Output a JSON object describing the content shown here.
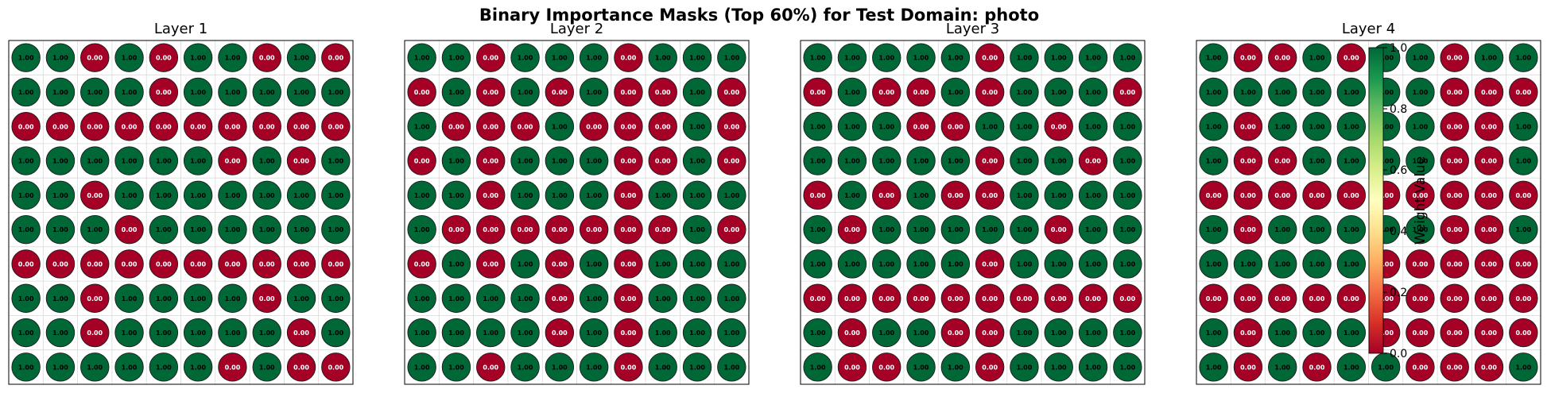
{
  "figure": {
    "title": "Binary Importance Masks (Top 60%) for Test Domain: photo"
  },
  "colors": {
    "on": "#006837",
    "off": "#a50026",
    "on_text": "#000000",
    "off_text": "#ffffff",
    "grid": "#d9d9d9",
    "cmap": [
      "#a50026",
      "#d73027",
      "#f46d43",
      "#fdae61",
      "#fee08b",
      "#ffffbf",
      "#d9ef8b",
      "#a6d96a",
      "#66bd63",
      "#1a9850",
      "#006837"
    ]
  },
  "colorbar": {
    "label": "Weight Value",
    "range": [
      0.0,
      1.0
    ],
    "ticks": [
      {
        "value": 0.0,
        "label": "0.0"
      },
      {
        "value": 0.2,
        "label": "0.2"
      },
      {
        "value": 0.4,
        "label": "0.4"
      },
      {
        "value": 0.6,
        "label": "0.6"
      },
      {
        "value": 0.8,
        "label": "0.8"
      },
      {
        "value": 1.0,
        "label": "1.0"
      }
    ]
  },
  "chart_data": [
    {
      "type": "heatmap",
      "title": "Layer 1",
      "values": [
        [
          1,
          1,
          0,
          1,
          0,
          1,
          1,
          0,
          1,
          0
        ],
        [
          1,
          1,
          1,
          1,
          0,
          1,
          1,
          1,
          1,
          1
        ],
        [
          0,
          0,
          0,
          0,
          0,
          0,
          0,
          0,
          0,
          0
        ],
        [
          1,
          1,
          1,
          1,
          1,
          1,
          0,
          1,
          0,
          1
        ],
        [
          1,
          1,
          0,
          1,
          1,
          1,
          1,
          1,
          1,
          1
        ],
        [
          1,
          1,
          1,
          0,
          1,
          1,
          1,
          1,
          1,
          1
        ],
        [
          0,
          0,
          0,
          0,
          0,
          0,
          0,
          0,
          0,
          0
        ],
        [
          1,
          1,
          0,
          1,
          1,
          1,
          1,
          0,
          1,
          1
        ],
        [
          1,
          1,
          0,
          1,
          1,
          1,
          1,
          1,
          0,
          1
        ],
        [
          1,
          1,
          1,
          1,
          1,
          1,
          0,
          1,
          0,
          0
        ]
      ]
    },
    {
      "type": "heatmap",
      "title": "Layer 2",
      "values": [
        [
          1,
          1,
          0,
          1,
          1,
          1,
          0,
          1,
          1,
          1
        ],
        [
          0,
          1,
          0,
          1,
          0,
          1,
          0,
          0,
          1,
          0
        ],
        [
          1,
          0,
          0,
          0,
          1,
          0,
          0,
          0,
          1,
          0
        ],
        [
          0,
          1,
          0,
          1,
          1,
          1,
          0,
          0,
          1,
          0
        ],
        [
          1,
          1,
          0,
          1,
          1,
          1,
          0,
          1,
          1,
          1
        ],
        [
          1,
          0,
          0,
          0,
          0,
          0,
          0,
          0,
          1,
          0
        ],
        [
          0,
          1,
          0,
          1,
          0,
          1,
          0,
          1,
          1,
          1
        ],
        [
          1,
          1,
          1,
          1,
          0,
          1,
          0,
          1,
          1,
          1
        ],
        [
          1,
          1,
          1,
          1,
          0,
          1,
          0,
          1,
          1,
          1
        ],
        [
          1,
          1,
          0,
          1,
          1,
          1,
          0,
          1,
          1,
          1
        ]
      ]
    },
    {
      "type": "heatmap",
      "title": "Layer 3",
      "values": [
        [
          1,
          1,
          1,
          1,
          1,
          0,
          1,
          1,
          1,
          1
        ],
        [
          0,
          1,
          0,
          0,
          1,
          0,
          1,
          1,
          1,
          0
        ],
        [
          1,
          1,
          1,
          0,
          0,
          1,
          1,
          0,
          1,
          1
        ],
        [
          1,
          1,
          1,
          1,
          1,
          0,
          1,
          1,
          0,
          1
        ],
        [
          0,
          1,
          0,
          1,
          0,
          0,
          1,
          1,
          1,
          1
        ],
        [
          1,
          0,
          1,
          1,
          1,
          1,
          1,
          0,
          1,
          1
        ],
        [
          1,
          1,
          1,
          1,
          1,
          0,
          1,
          1,
          1,
          1
        ],
        [
          0,
          0,
          0,
          0,
          0,
          0,
          0,
          0,
          0,
          0
        ],
        [
          1,
          0,
          1,
          1,
          0,
          0,
          1,
          1,
          1,
          1
        ],
        [
          1,
          0,
          0,
          1,
          1,
          0,
          1,
          1,
          1,
          1
        ]
      ]
    },
    {
      "type": "heatmap",
      "title": "Layer 4",
      "values": [
        [
          1,
          0,
          0,
          1,
          0,
          1,
          1,
          0,
          1,
          1
        ],
        [
          1,
          1,
          1,
          1,
          1,
          1,
          1,
          0,
          0,
          0
        ],
        [
          1,
          0,
          1,
          1,
          1,
          1,
          1,
          0,
          0,
          1
        ],
        [
          1,
          0,
          0,
          1,
          1,
          1,
          1,
          0,
          0,
          1
        ],
        [
          0,
          0,
          0,
          0,
          0,
          0,
          0,
          0,
          0,
          0
        ],
        [
          1,
          0,
          1,
          1,
          1,
          1,
          1,
          0,
          0,
          1
        ],
        [
          1,
          1,
          1,
          1,
          1,
          0,
          0,
          0,
          0,
          0
        ],
        [
          0,
          0,
          0,
          0,
          0,
          0,
          0,
          0,
          0,
          0
        ],
        [
          1,
          0,
          1,
          1,
          1,
          0,
          0,
          0,
          0,
          0
        ],
        [
          1,
          0,
          1,
          0,
          1,
          1,
          0,
          0,
          0,
          1
        ]
      ]
    }
  ]
}
